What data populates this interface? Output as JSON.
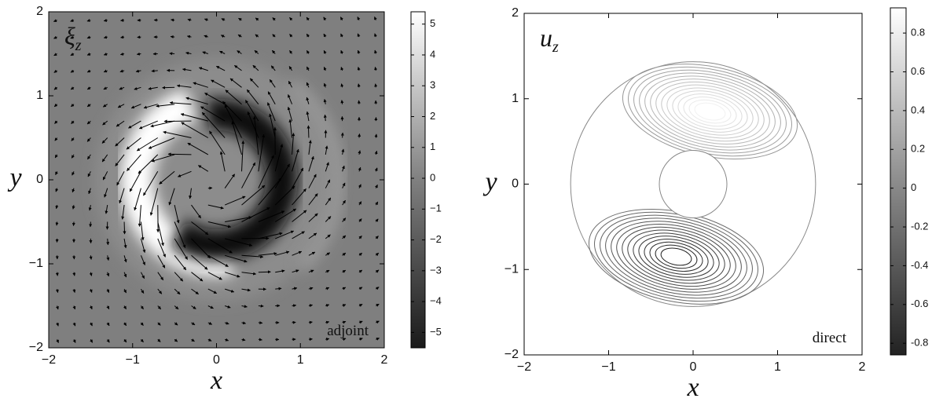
{
  "chart_data": [
    {
      "type": "heatmap",
      "title": "ξ",
      "title_subscript": "z",
      "annotation": "adjoint",
      "xlabel": "x",
      "ylabel": "y",
      "xlim": [
        -2,
        2
      ],
      "ylim": [
        -2,
        2
      ],
      "xticks": [
        {
          "value": -2,
          "label": "−2"
        },
        {
          "value": -1,
          "label": "−1"
        },
        0,
        1,
        2
      ],
      "yticks": [
        {
          "value": -2,
          "label": "−2"
        },
        {
          "value": -1,
          "label": "−1"
        },
        0,
        1,
        2
      ],
      "colorbar": {
        "lim": [
          -5.5,
          5.4
        ],
        "ticks": [
          {
            "value": -5,
            "label": "−5"
          },
          {
            "value": -4,
            "label": "−4"
          },
          {
            "value": -3,
            "label": "−3"
          },
          {
            "value": -2,
            "label": "−2"
          },
          {
            "value": -1,
            "label": "−1"
          },
          0,
          1,
          2,
          3,
          4,
          5
        ]
      }
    },
    {
      "type": "contour",
      "title": "u",
      "title_subscript": "z",
      "annotation": "direct",
      "xlabel": "x",
      "ylabel": "y",
      "xlim": [
        -2,
        2
      ],
      "ylim": [
        -2,
        2
      ],
      "xticks": [
        {
          "value": -2,
          "label": "−2"
        },
        {
          "value": -1,
          "label": "−1"
        },
        0,
        1,
        2
      ],
      "yticks": [
        {
          "value": -2,
          "label": "−2"
        },
        {
          "value": -1,
          "label": "−1"
        },
        0,
        1,
        2
      ],
      "colorbar": {
        "lim": [
          -0.86,
          0.93
        ],
        "ticks": [
          -0.8,
          -0.6,
          -0.4,
          -0.2,
          0,
          0.2,
          0.4,
          0.6,
          0.8
        ]
      }
    }
  ]
}
